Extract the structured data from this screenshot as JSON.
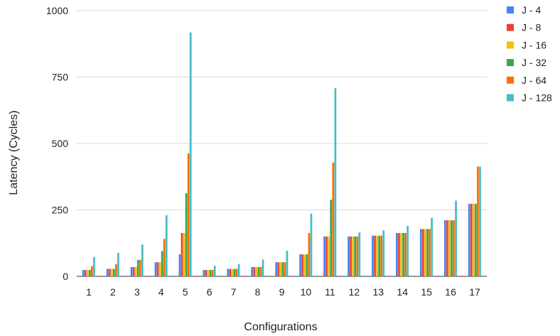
{
  "chart_data": {
    "type": "bar",
    "title": "",
    "xlabel": "Configurations",
    "ylabel": "Latency (Cycles)",
    "ylim": [
      0,
      1000
    ],
    "yticks": [
      0,
      250,
      500,
      750,
      1000
    ],
    "grid": true,
    "legend_position": "right",
    "categories": [
      "1",
      "2",
      "3",
      "4",
      "5",
      "6",
      "7",
      "8",
      "9",
      "10",
      "11",
      "12",
      "13",
      "14",
      "15",
      "16",
      "17"
    ],
    "series": [
      {
        "name": "J - 4",
        "color": "#4285f4",
        "values": [
          24,
          28,
          35,
          53,
          83,
          24,
          28,
          35,
          53,
          83,
          150,
          150,
          153,
          163,
          178,
          211,
          273
        ]
      },
      {
        "name": "J - 8",
        "color": "#ea4335",
        "values": [
          24,
          28,
          35,
          53,
          163,
          24,
          28,
          35,
          53,
          83,
          150,
          150,
          153,
          163,
          178,
          211,
          273
        ]
      },
      {
        "name": "J - 16",
        "color": "#fbbc04",
        "values": [
          24,
          28,
          35,
          53,
          163,
          24,
          28,
          35,
          53,
          83,
          150,
          150,
          153,
          163,
          178,
          211,
          273
        ]
      },
      {
        "name": "J - 32",
        "color": "#34a853",
        "values": [
          24,
          28,
          62,
          95,
          313,
          24,
          28,
          35,
          53,
          83,
          288,
          150,
          153,
          163,
          178,
          211,
          273
        ]
      },
      {
        "name": "J - 64",
        "color": "#ff6d01",
        "values": [
          38,
          46,
          62,
          141,
          463,
          24,
          28,
          35,
          53,
          163,
          428,
          150,
          153,
          163,
          178,
          211,
          413
        ]
      },
      {
        "name": "J - 128",
        "color": "#46bdc6",
        "values": [
          73,
          88,
          120,
          230,
          918,
          40,
          46,
          63,
          96,
          236,
          708,
          165,
          173,
          190,
          220,
          285,
          413
        ]
      }
    ]
  }
}
